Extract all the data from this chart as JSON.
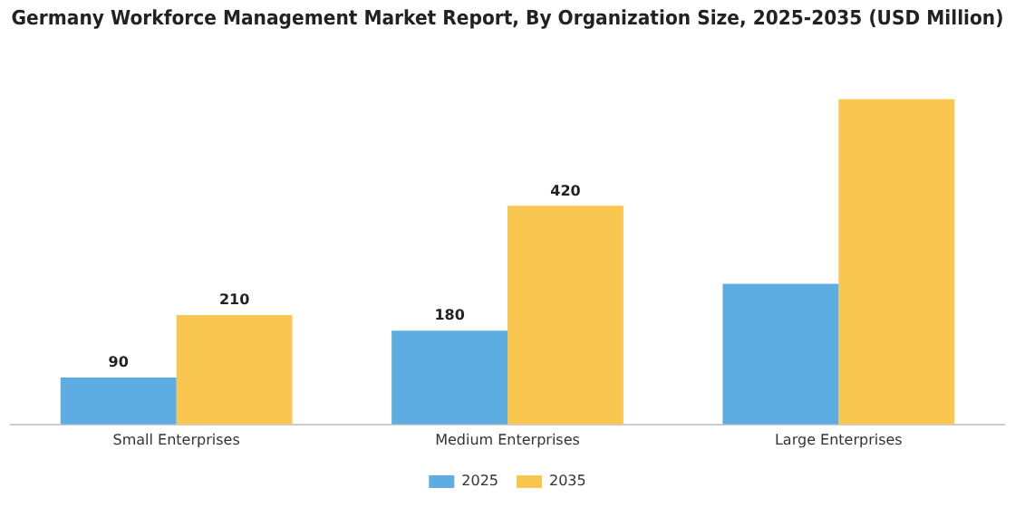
{
  "chart_data": {
    "type": "bar",
    "title": "Germany Workforce Management Market Report, By Organization Size, 2025-2035 (USD Million)",
    "categories": [
      "Small Enterprises",
      "Medium Enterprises",
      "Large Enterprises"
    ],
    "series": [
      {
        "name": "2025",
        "color": "#5dade2",
        "values": [
          90,
          180,
          270
        ],
        "value_labels": [
          "90",
          "180",
          null
        ]
      },
      {
        "name": "2035",
        "color": "#f9c74f",
        "values": [
          210,
          420,
          625
        ],
        "value_labels": [
          "210",
          "420",
          null
        ]
      }
    ],
    "legend": "bottom",
    "grid": false
  }
}
